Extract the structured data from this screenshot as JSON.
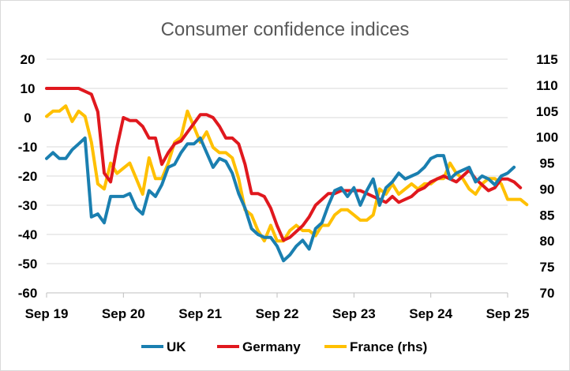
{
  "chart_data": {
    "type": "line",
    "title": "Consumer confidence indices",
    "xlabel": "",
    "ylabel": "",
    "x_tick_labels": [
      "Sep 19",
      "Sep 20",
      "Sep 21",
      "Sep 22",
      "Sep 23",
      "Sep 24",
      "Sep 25"
    ],
    "y_left": {
      "ticks": [
        "20",
        "10",
        "0",
        "-10",
        "-20",
        "-30",
        "-40",
        "-50",
        "-60"
      ],
      "lim": [
        -60,
        20
      ]
    },
    "y_right": {
      "ticks": [
        "115",
        "110",
        "105",
        "100",
        "95",
        "90",
        "85",
        "80",
        "75",
        "70"
      ],
      "lim": [
        70,
        115
      ]
    },
    "legend_position": "bottom",
    "grid": "horizontal",
    "series": [
      {
        "name": "UK",
        "axis": "left",
        "color": "#1a7fb0",
        "start": "Sep 19",
        "values": [
          -14,
          -12,
          -14,
          -14,
          -11,
          -9,
          -7,
          -34,
          -33,
          -36,
          -27,
          -27,
          -27,
          -26,
          -31,
          -33,
          -25,
          -27,
          -23,
          -17,
          -16,
          -12,
          -9,
          -9,
          -7,
          -12,
          -17,
          -14,
          -15,
          -19,
          -26,
          -31,
          -38,
          -40,
          -41,
          -41,
          -44,
          -49,
          -47,
          -44,
          -42,
          -45,
          -38,
          -36,
          -30,
          -25,
          -24,
          -27,
          -24,
          -30,
          -25,
          -21,
          -30,
          -24,
          -22,
          -19,
          -21,
          -20,
          -19,
          -17,
          -14,
          -13,
          -13,
          -21,
          -19,
          -18,
          -17,
          -22,
          -20,
          -21,
          -23,
          -20,
          -19,
          -17
        ]
      },
      {
        "name": "Germany",
        "axis": "left",
        "color": "#e0181e",
        "start": "Sep 19",
        "values": [
          10,
          10,
          10,
          10,
          10,
          10,
          9,
          8,
          2,
          -19,
          -22,
          -10,
          0,
          -1,
          -1,
          -3,
          -7,
          -7,
          -16,
          -12,
          -9,
          -8,
          -5,
          -2,
          1,
          1,
          0,
          -3,
          -7,
          -7,
          -9,
          -16,
          -26,
          -26,
          -27,
          -31,
          -37,
          -42,
          -41,
          -39,
          -37,
          -34,
          -30,
          -28,
          -26,
          -26,
          -25,
          -25,
          -25,
          -25,
          -26,
          -27,
          -28,
          -29,
          -27,
          -29,
          -28,
          -27,
          -25,
          -24,
          -22,
          -21,
          -20,
          -21,
          -22,
          -20,
          -18,
          -21,
          -23,
          -25,
          -24,
          -21,
          -21,
          -22,
          -24
        ]
      },
      {
        "name": "France (rhs)",
        "axis": "right",
        "color": "#ffc000",
        "start": "Sep 19",
        "values": [
          104,
          105,
          105,
          106,
          103,
          105,
          104,
          99,
          91,
          90,
          95,
          93,
          94,
          95,
          92,
          89,
          96,
          92,
          92,
          95,
          99,
          100,
          105,
          102,
          99,
          101,
          98,
          97,
          97,
          96,
          92,
          86,
          85,
          82,
          80,
          83,
          80,
          80,
          82,
          83,
          82,
          82,
          81,
          83,
          83,
          85,
          86,
          86,
          85,
          84,
          84,
          85,
          90,
          89,
          91,
          89,
          90,
          91,
          90,
          91,
          91,
          92,
          92,
          95,
          93,
          92,
          90,
          89,
          91,
          92,
          92,
          91,
          88,
          88,
          88,
          87
        ]
      }
    ]
  }
}
